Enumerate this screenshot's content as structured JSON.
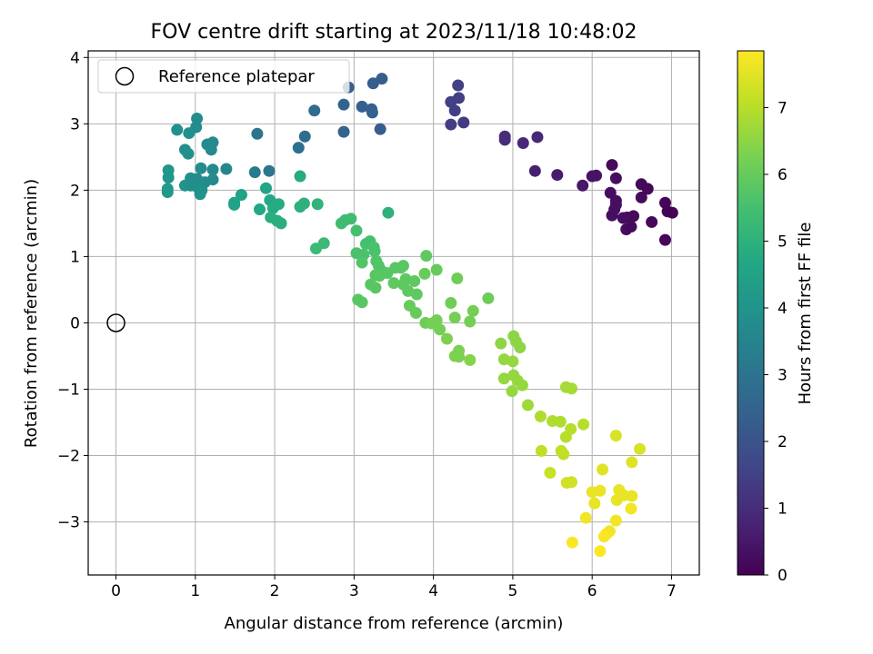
{
  "chart_data": {
    "type": "scatter",
    "title": "FOV centre drift starting at 2023/11/18 10:48:02",
    "xlabel": "Angular distance from reference (arcmin)",
    "ylabel": "Rotation from reference (arcmin)",
    "xlim": [
      -0.35,
      7.35
    ],
    "ylim": [
      -3.8,
      4.1
    ],
    "xticks": [
      0,
      1,
      2,
      3,
      4,
      5,
      6,
      7
    ],
    "yticks": [
      -3,
      -2,
      -1,
      0,
      1,
      2,
      3,
      4
    ],
    "grid": true,
    "legend": {
      "placement": "top-left",
      "entries": [
        "Reference platepar"
      ]
    },
    "reference_point": {
      "x": 0,
      "y": 0,
      "label": "Reference platepar"
    },
    "colorbar": {
      "label": "Hours from first FF file",
      "colormap": "viridis",
      "range": [
        0,
        7.85
      ],
      "ticks": [
        0,
        1,
        2,
        3,
        4,
        5,
        6,
        7
      ]
    },
    "points": [
      {
        "x": 6.25,
        "y": 2.38,
        "h": 0.2
      },
      {
        "x": 6.05,
        "y": 2.22,
        "h": 0.4
      },
      {
        "x": 6.0,
        "y": 2.21,
        "h": 0.4
      },
      {
        "x": 6.3,
        "y": 2.18,
        "h": 0.3
      },
      {
        "x": 5.88,
        "y": 2.07,
        "h": 0.5
      },
      {
        "x": 6.62,
        "y": 2.09,
        "h": 0.15
      },
      {
        "x": 6.7,
        "y": 2.02,
        "h": 0.15
      },
      {
        "x": 6.23,
        "y": 1.96,
        "h": 0.3
      },
      {
        "x": 6.62,
        "y": 1.89,
        "h": 0.2
      },
      {
        "x": 6.3,
        "y": 1.84,
        "h": 0.3
      },
      {
        "x": 6.3,
        "y": 1.78,
        "h": 0.3
      },
      {
        "x": 6.92,
        "y": 1.81,
        "h": 0.1
      },
      {
        "x": 6.95,
        "y": 1.68,
        "h": 0.1
      },
      {
        "x": 7.01,
        "y": 1.66,
        "h": 0.05
      },
      {
        "x": 6.28,
        "y": 1.71,
        "h": 0.3
      },
      {
        "x": 6.25,
        "y": 1.62,
        "h": 0.3
      },
      {
        "x": 6.44,
        "y": 1.59,
        "h": 0.25
      },
      {
        "x": 6.52,
        "y": 1.61,
        "h": 0.2
      },
      {
        "x": 6.39,
        "y": 1.58,
        "h": 0.25
      },
      {
        "x": 6.75,
        "y": 1.52,
        "h": 0.15
      },
      {
        "x": 6.43,
        "y": 1.41,
        "h": 0.25
      },
      {
        "x": 6.49,
        "y": 1.45,
        "h": 0.2
      },
      {
        "x": 6.92,
        "y": 1.25,
        "h": 0.1
      },
      {
        "x": 4.9,
        "y": 2.81,
        "h": 1.0
      },
      {
        "x": 4.9,
        "y": 2.76,
        "h": 1.0
      },
      {
        "x": 5.13,
        "y": 2.71,
        "h": 0.9
      },
      {
        "x": 5.31,
        "y": 2.8,
        "h": 0.85
      },
      {
        "x": 5.28,
        "y": 2.29,
        "h": 0.7
      },
      {
        "x": 5.56,
        "y": 2.23,
        "h": 0.6
      },
      {
        "x": 4.31,
        "y": 3.58,
        "h": 1.5
      },
      {
        "x": 4.22,
        "y": 3.33,
        "h": 1.5
      },
      {
        "x": 4.32,
        "y": 3.39,
        "h": 1.45
      },
      {
        "x": 4.27,
        "y": 3.2,
        "h": 1.45
      },
      {
        "x": 4.38,
        "y": 3.02,
        "h": 1.35
      },
      {
        "x": 4.22,
        "y": 2.99,
        "h": 1.4
      },
      {
        "x": 3.35,
        "y": 3.68,
        "h": 2.3
      },
      {
        "x": 3.24,
        "y": 3.61,
        "h": 2.3
      },
      {
        "x": 2.93,
        "y": 3.55,
        "h": 2.4
      },
      {
        "x": 2.87,
        "y": 3.29,
        "h": 2.5
      },
      {
        "x": 3.1,
        "y": 3.26,
        "h": 2.4
      },
      {
        "x": 3.22,
        "y": 3.22,
        "h": 2.4
      },
      {
        "x": 3.23,
        "y": 3.17,
        "h": 2.4
      },
      {
        "x": 2.5,
        "y": 3.2,
        "h": 2.7
      },
      {
        "x": 3.33,
        "y": 2.92,
        "h": 2.3
      },
      {
        "x": 2.87,
        "y": 2.88,
        "h": 2.5
      },
      {
        "x": 2.38,
        "y": 2.81,
        "h": 2.8
      },
      {
        "x": 2.3,
        "y": 2.64,
        "h": 2.9
      },
      {
        "x": 1.78,
        "y": 2.85,
        "h": 3.0
      },
      {
        "x": 1.75,
        "y": 2.27,
        "h": 3.2
      },
      {
        "x": 1.93,
        "y": 2.29,
        "h": 3.1
      },
      {
        "x": 0.77,
        "y": 2.91,
        "h": 3.9
      },
      {
        "x": 1.02,
        "y": 3.08,
        "h": 3.8
      },
      {
        "x": 1.01,
        "y": 2.95,
        "h": 3.8
      },
      {
        "x": 0.92,
        "y": 2.86,
        "h": 3.9
      },
      {
        "x": 1.15,
        "y": 2.69,
        "h": 3.7
      },
      {
        "x": 1.22,
        "y": 2.72,
        "h": 3.7
      },
      {
        "x": 1.2,
        "y": 2.61,
        "h": 3.7
      },
      {
        "x": 0.87,
        "y": 2.61,
        "h": 3.9
      },
      {
        "x": 0.91,
        "y": 2.55,
        "h": 3.9
      },
      {
        "x": 0.66,
        "y": 2.3,
        "h": 4.1
      },
      {
        "x": 1.07,
        "y": 2.33,
        "h": 3.8
      },
      {
        "x": 1.22,
        "y": 2.31,
        "h": 3.7
      },
      {
        "x": 1.39,
        "y": 2.32,
        "h": 3.6
      },
      {
        "x": 0.66,
        "y": 2.19,
        "h": 4.1
      },
      {
        "x": 0.94,
        "y": 2.18,
        "h": 3.9
      },
      {
        "x": 1.02,
        "y": 2.17,
        "h": 3.8
      },
      {
        "x": 1.22,
        "y": 2.16,
        "h": 3.7
      },
      {
        "x": 1.12,
        "y": 2.12,
        "h": 3.8
      },
      {
        "x": 0.87,
        "y": 2.07,
        "h": 4.0
      },
      {
        "x": 0.94,
        "y": 2.07,
        "h": 3.9
      },
      {
        "x": 1.03,
        "y": 2.04,
        "h": 3.9
      },
      {
        "x": 1.08,
        "y": 2.0,
        "h": 3.9
      },
      {
        "x": 0.65,
        "y": 2.02,
        "h": 4.2
      },
      {
        "x": 0.65,
        "y": 1.97,
        "h": 4.2
      },
      {
        "x": 1.06,
        "y": 1.94,
        "h": 4.0
      },
      {
        "x": 1.58,
        "y": 1.93,
        "h": 4.5
      },
      {
        "x": 1.49,
        "y": 1.81,
        "h": 4.5
      },
      {
        "x": 1.49,
        "y": 1.78,
        "h": 4.5
      },
      {
        "x": 1.81,
        "y": 1.71,
        "h": 4.7
      },
      {
        "x": 1.89,
        "y": 2.03,
        "h": 4.6
      },
      {
        "x": 1.94,
        "y": 1.85,
        "h": 4.7
      },
      {
        "x": 1.98,
        "y": 1.73,
        "h": 4.8
      },
      {
        "x": 2.05,
        "y": 1.79,
        "h": 4.8
      },
      {
        "x": 1.95,
        "y": 1.59,
        "h": 4.9
      },
      {
        "x": 2.03,
        "y": 1.54,
        "h": 4.9
      },
      {
        "x": 2.08,
        "y": 1.5,
        "h": 4.9
      },
      {
        "x": 2.32,
        "y": 2.21,
        "h": 4.8
      },
      {
        "x": 2.32,
        "y": 1.75,
        "h": 5.0
      },
      {
        "x": 2.37,
        "y": 1.8,
        "h": 5.0
      },
      {
        "x": 2.54,
        "y": 1.79,
        "h": 5.1
      },
      {
        "x": 2.52,
        "y": 1.12,
        "h": 5.3
      },
      {
        "x": 2.62,
        "y": 1.2,
        "h": 5.3
      },
      {
        "x": 3.43,
        "y": 1.66,
        "h": 5.0
      },
      {
        "x": 2.84,
        "y": 1.5,
        "h": 5.4
      },
      {
        "x": 2.89,
        "y": 1.55,
        "h": 5.4
      },
      {
        "x": 2.96,
        "y": 1.57,
        "h": 5.4
      },
      {
        "x": 3.03,
        "y": 1.39,
        "h": 5.5
      },
      {
        "x": 3.15,
        "y": 1.19,
        "h": 5.5
      },
      {
        "x": 3.2,
        "y": 1.23,
        "h": 5.5
      },
      {
        "x": 3.25,
        "y": 1.14,
        "h": 5.6
      },
      {
        "x": 3.26,
        "y": 1.08,
        "h": 5.6
      },
      {
        "x": 3.03,
        "y": 1.05,
        "h": 5.6
      },
      {
        "x": 3.12,
        "y": 1.03,
        "h": 5.6
      },
      {
        "x": 3.28,
        "y": 0.93,
        "h": 5.7
      },
      {
        "x": 3.1,
        "y": 0.91,
        "h": 5.7
      },
      {
        "x": 3.31,
        "y": 0.86,
        "h": 5.7
      },
      {
        "x": 3.35,
        "y": 0.78,
        "h": 5.7
      },
      {
        "x": 3.42,
        "y": 0.75,
        "h": 5.8
      },
      {
        "x": 3.52,
        "y": 0.83,
        "h": 5.8
      },
      {
        "x": 3.59,
        "y": 0.83,
        "h": 5.8
      },
      {
        "x": 3.62,
        "y": 0.86,
        "h": 5.8
      },
      {
        "x": 3.27,
        "y": 0.72,
        "h": 5.8
      },
      {
        "x": 3.32,
        "y": 0.71,
        "h": 5.8
      },
      {
        "x": 3.21,
        "y": 0.58,
        "h": 5.8
      },
      {
        "x": 3.27,
        "y": 0.53,
        "h": 5.8
      },
      {
        "x": 3.5,
        "y": 0.6,
        "h": 5.9
      },
      {
        "x": 3.62,
        "y": 0.58,
        "h": 5.9
      },
      {
        "x": 3.65,
        "y": 0.66,
        "h": 5.9
      },
      {
        "x": 3.76,
        "y": 0.63,
        "h": 5.9
      },
      {
        "x": 3.68,
        "y": 0.48,
        "h": 5.9
      },
      {
        "x": 3.79,
        "y": 0.43,
        "h": 5.9
      },
      {
        "x": 3.05,
        "y": 0.35,
        "h": 5.8
      },
      {
        "x": 3.1,
        "y": 0.31,
        "h": 5.8
      },
      {
        "x": 3.7,
        "y": 0.26,
        "h": 6.0
      },
      {
        "x": 3.78,
        "y": 0.15,
        "h": 6.0
      },
      {
        "x": 3.91,
        "y": 1.01,
        "h": 5.9
      },
      {
        "x": 4.04,
        "y": 0.8,
        "h": 6.0
      },
      {
        "x": 3.89,
        "y": 0.74,
        "h": 6.0
      },
      {
        "x": 4.3,
        "y": 0.67,
        "h": 6.1
      },
      {
        "x": 4.69,
        "y": 0.37,
        "h": 6.1
      },
      {
        "x": 4.22,
        "y": 0.3,
        "h": 6.1
      },
      {
        "x": 4.5,
        "y": 0.18,
        "h": 6.2
      },
      {
        "x": 4.27,
        "y": 0.08,
        "h": 6.2
      },
      {
        "x": 4.46,
        "y": 0.02,
        "h": 6.2
      },
      {
        "x": 3.9,
        "y": 0.0,
        "h": 6.1
      },
      {
        "x": 3.98,
        "y": -0.01,
        "h": 6.2
      },
      {
        "x": 4.04,
        "y": 0.04,
        "h": 6.2
      },
      {
        "x": 4.08,
        "y": -0.1,
        "h": 6.2
      },
      {
        "x": 4.17,
        "y": -0.24,
        "h": 6.3
      },
      {
        "x": 4.32,
        "y": -0.42,
        "h": 6.3
      },
      {
        "x": 4.27,
        "y": -0.5,
        "h": 6.3
      },
      {
        "x": 4.32,
        "y": -0.51,
        "h": 6.3
      },
      {
        "x": 4.46,
        "y": -0.56,
        "h": 6.4
      },
      {
        "x": 4.85,
        "y": -0.31,
        "h": 6.5
      },
      {
        "x": 5.01,
        "y": -0.2,
        "h": 6.5
      },
      {
        "x": 5.04,
        "y": -0.28,
        "h": 6.5
      },
      {
        "x": 5.09,
        "y": -0.37,
        "h": 6.5
      },
      {
        "x": 4.89,
        "y": -0.55,
        "h": 6.6
      },
      {
        "x": 5.0,
        "y": -0.58,
        "h": 6.6
      },
      {
        "x": 4.89,
        "y": -0.84,
        "h": 6.6
      },
      {
        "x": 5.01,
        "y": -0.79,
        "h": 6.6
      },
      {
        "x": 5.06,
        "y": -0.87,
        "h": 6.6
      },
      {
        "x": 5.12,
        "y": -0.94,
        "h": 6.6
      },
      {
        "x": 4.99,
        "y": -1.03,
        "h": 6.6
      },
      {
        "x": 5.19,
        "y": -1.24,
        "h": 6.7
      },
      {
        "x": 5.67,
        "y": -0.97,
        "h": 6.8
      },
      {
        "x": 5.74,
        "y": -0.99,
        "h": 6.8
      },
      {
        "x": 5.35,
        "y": -1.41,
        "h": 6.9
      },
      {
        "x": 5.5,
        "y": -1.48,
        "h": 6.9
      },
      {
        "x": 5.6,
        "y": -1.49,
        "h": 6.9
      },
      {
        "x": 5.73,
        "y": -1.6,
        "h": 7.0
      },
      {
        "x": 5.67,
        "y": -1.72,
        "h": 7.0
      },
      {
        "x": 5.89,
        "y": -1.53,
        "h": 7.0
      },
      {
        "x": 5.36,
        "y": -1.93,
        "h": 7.1
      },
      {
        "x": 5.61,
        "y": -1.93,
        "h": 7.1
      },
      {
        "x": 5.64,
        "y": -1.98,
        "h": 7.1
      },
      {
        "x": 5.47,
        "y": -2.26,
        "h": 7.2
      },
      {
        "x": 5.68,
        "y": -2.41,
        "h": 7.3
      },
      {
        "x": 5.74,
        "y": -2.4,
        "h": 7.3
      },
      {
        "x": 6.3,
        "y": -1.7,
        "h": 7.4
      },
      {
        "x": 6.6,
        "y": -1.9,
        "h": 7.4
      },
      {
        "x": 6.13,
        "y": -2.21,
        "h": 7.5
      },
      {
        "x": 6.5,
        "y": -2.1,
        "h": 7.5
      },
      {
        "x": 6.0,
        "y": -2.55,
        "h": 7.6
      },
      {
        "x": 6.1,
        "y": -2.53,
        "h": 7.6
      },
      {
        "x": 6.03,
        "y": -2.72,
        "h": 7.6
      },
      {
        "x": 6.34,
        "y": -2.52,
        "h": 7.6
      },
      {
        "x": 6.31,
        "y": -2.67,
        "h": 7.6
      },
      {
        "x": 6.4,
        "y": -2.6,
        "h": 7.6
      },
      {
        "x": 6.5,
        "y": -2.61,
        "h": 7.6
      },
      {
        "x": 6.49,
        "y": -2.8,
        "h": 7.7
      },
      {
        "x": 5.92,
        "y": -2.94,
        "h": 7.7
      },
      {
        "x": 6.3,
        "y": -2.98,
        "h": 7.7
      },
      {
        "x": 6.22,
        "y": -3.14,
        "h": 7.7
      },
      {
        "x": 6.18,
        "y": -3.18,
        "h": 7.7
      },
      {
        "x": 6.15,
        "y": -3.22,
        "h": 7.8
      },
      {
        "x": 5.75,
        "y": -3.31,
        "h": 7.8
      },
      {
        "x": 6.1,
        "y": -3.44,
        "h": 7.85
      }
    ]
  }
}
